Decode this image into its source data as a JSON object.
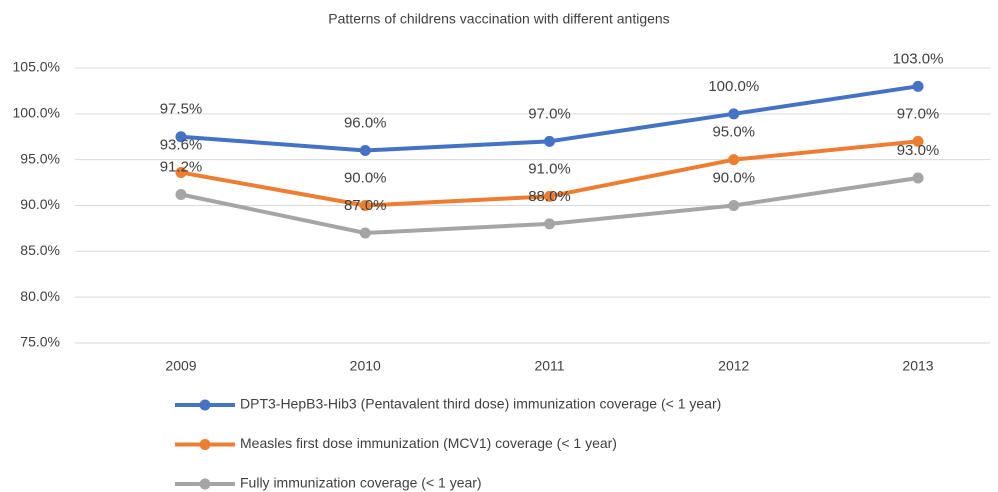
{
  "chart_data": {
    "type": "line",
    "title": "Patterns of childrens vaccination with different antigens",
    "categories": [
      "2009",
      "2010",
      "2011",
      "2012",
      "2013"
    ],
    "series": [
      {
        "name": "DPT3-HepB3-Hib3 (Pentavalent third dose) immunization coverage (< 1 year)",
        "color": "#4472c4",
        "values": [
          97.5,
          96.0,
          97.0,
          100.0,
          103.0
        ],
        "value_labels": [
          "97.5%",
          "96.0%",
          "97.0%",
          "100.0%",
          "103.0%"
        ]
      },
      {
        "name": "Measles first dose immunization (MCV1) coverage (< 1 year)",
        "color": "#ed7d31",
        "values": [
          93.6,
          90.0,
          91.0,
          95.0,
          97.0
        ],
        "value_labels": [
          "93.6%",
          "90.0%",
          "91.0%",
          "95.0%",
          "97.0%"
        ]
      },
      {
        "name": "Fully immunization coverage (< 1 year)",
        "color": "#a5a5a5",
        "values": [
          91.2,
          87.0,
          88.0,
          90.0,
          93.0
        ],
        "value_labels": [
          "91.2%",
          "87.0%",
          "88.0%",
          "90.0%",
          "93.0%"
        ]
      }
    ],
    "ylim": [
      75,
      105
    ],
    "yticks": [
      {
        "value": 75,
        "label": "75.0%"
      },
      {
        "value": 80,
        "label": "80.0%"
      },
      {
        "value": 85,
        "label": "85.0%"
      },
      {
        "value": 90,
        "label": "90.0%"
      },
      {
        "value": 95,
        "label": "95.0%"
      },
      {
        "value": 100,
        "label": "100.0%"
      },
      {
        "value": 105,
        "label": "105.0%"
      }
    ],
    "grid": true,
    "legend": "bottom"
  }
}
